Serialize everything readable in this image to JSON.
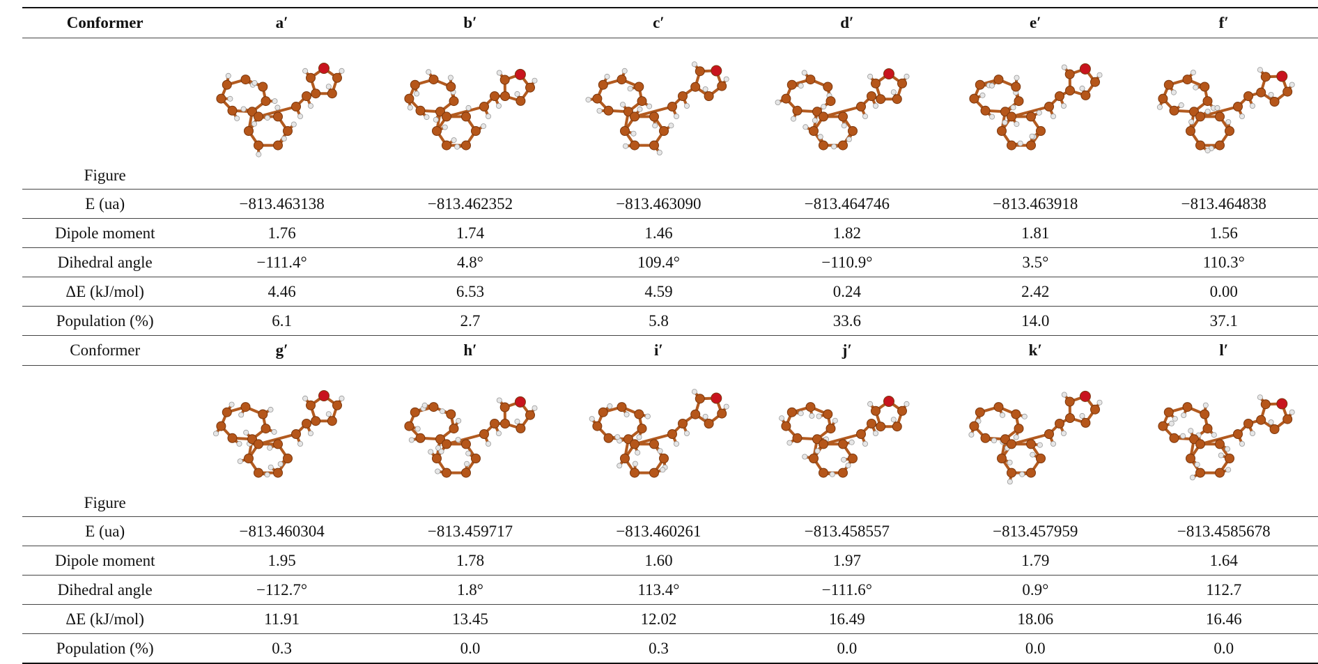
{
  "colors": {
    "carbon": "#b5561a",
    "carbon_edge": "#7a360c",
    "oxygen": "#c8141e",
    "hydrogen": "#e6e6e6",
    "bond": "#b25a1f"
  },
  "labels": {
    "conformer": "Conformer",
    "figure": "Figure",
    "energy": "E (ua)",
    "dipole": "Dipole moment",
    "dihedral": "Dihedral angle",
    "delta_e": "ΔE (kJ/mol)",
    "population": "Population (%)"
  },
  "groups": [
    {
      "conformers": [
        {
          "id": "a′",
          "energy": "−813.463138",
          "dipole": "1.76",
          "dihedral": "−111.4°",
          "delta_e": "4.46",
          "population": "6.1",
          "figure_icon": "molecule-3d-icon"
        },
        {
          "id": "b′",
          "energy": "−813.462352",
          "dipole": "1.74",
          "dihedral": "4.8°",
          "delta_e": "6.53",
          "population": "2.7",
          "figure_icon": "molecule-3d-icon"
        },
        {
          "id": "c′",
          "energy": "−813.463090",
          "dipole": "1.46",
          "dihedral": "109.4°",
          "delta_e": "4.59",
          "population": "5.8",
          "figure_icon": "molecule-3d-icon"
        },
        {
          "id": "d′",
          "energy": "−813.464746",
          "dipole": "1.82",
          "dihedral": "−110.9°",
          "delta_e": "0.24",
          "population": "33.6",
          "figure_icon": "molecule-3d-icon"
        },
        {
          "id": "e′",
          "energy": "−813.463918",
          "dipole": "1.81",
          "dihedral": "3.5°",
          "delta_e": "2.42",
          "population": "14.0",
          "figure_icon": "molecule-3d-icon"
        },
        {
          "id": "f′",
          "energy": "−813.464838",
          "dipole": "1.56",
          "dihedral": "110.3°",
          "delta_e": "0.00",
          "population": "37.1",
          "figure_icon": "molecule-3d-icon"
        }
      ]
    },
    {
      "conformers": [
        {
          "id": "g′",
          "energy": "−813.460304",
          "dipole": "1.95",
          "dihedral": "−112.7°",
          "delta_e": "11.91",
          "population": "0.3",
          "figure_icon": "molecule-3d-icon"
        },
        {
          "id": "h′",
          "energy": "−813.459717",
          "dipole": "1.78",
          "dihedral": "1.8°",
          "delta_e": "13.45",
          "population": "0.0",
          "figure_icon": "molecule-3d-icon"
        },
        {
          "id": "i′",
          "energy": "−813.460261",
          "dipole": "1.60",
          "dihedral": "113.4°",
          "delta_e": "12.02",
          "population": "0.3",
          "figure_icon": "molecule-3d-icon"
        },
        {
          "id": "j′",
          "energy": "−813.458557",
          "dipole": "1.97",
          "dihedral": "−111.6°",
          "delta_e": "16.49",
          "population": "0.0",
          "figure_icon": "molecule-3d-icon"
        },
        {
          "id": "k′",
          "energy": "−813.457959",
          "dipole": "1.79",
          "dihedral": "0.9°",
          "delta_e": "18.06",
          "population": "0.0",
          "figure_icon": "molecule-3d-icon"
        },
        {
          "id": "l′",
          "energy": "−813.4585678",
          "dipole": "1.64",
          "dihedral": "112.7",
          "delta_e": "16.46",
          "population": "0.0",
          "figure_icon": "molecule-3d-icon"
        }
      ]
    }
  ]
}
